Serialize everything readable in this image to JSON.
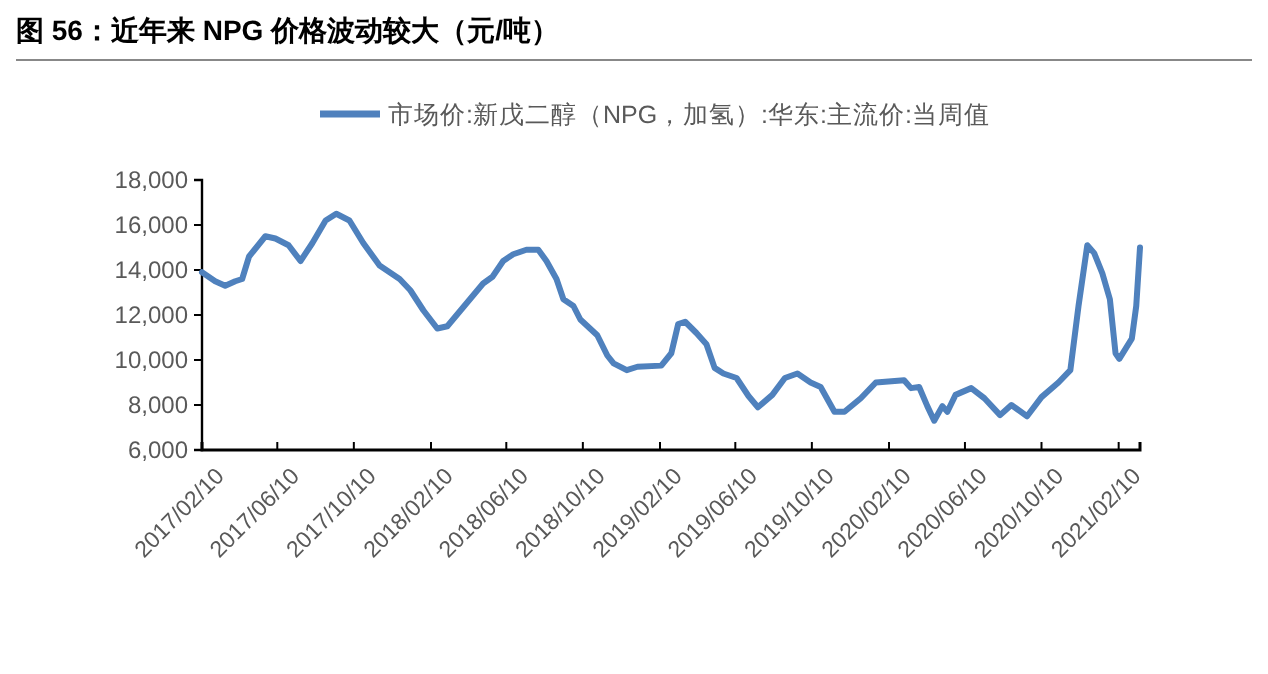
{
  "chart_data": {
    "type": "line",
    "title": "图 56：近年来 NPG 价格波动较大（元/吨）",
    "legend": "top",
    "line_style": "solid",
    "series": [
      {
        "name": "市场价:新戊二醇（NPG，加氢）:华东:主流价:当周值",
        "color": "#4f81bd",
        "x": [
          "2017-02-10",
          "2017-03-03",
          "2017-03-19",
          "2017-04-04",
          "2017-04-15",
          "2017-04-26",
          "2017-05-22",
          "2017-06-07",
          "2017-06-28",
          "2017-07-17",
          "2017-08-05",
          "2017-08-26",
          "2017-09-12",
          "2017-10-03",
          "2017-10-25",
          "2017-11-20",
          "2017-12-22",
          "2018-01-08",
          "2018-01-29",
          "2018-02-20",
          "2018-03-08",
          "2018-04-07",
          "2018-05-04",
          "2018-05-19",
          "2018-06-05",
          "2018-06-21",
          "2018-07-12",
          "2018-07-31",
          "2018-08-13",
          "2018-08-29",
          "2018-09-09",
          "2018-09-25",
          "2018-10-06",
          "2018-11-02",
          "2018-11-18",
          "2018-11-28",
          "2018-12-19",
          "2019-01-05",
          "2019-02-12",
          "2019-02-28",
          "2019-03-11",
          "2019-03-22",
          "2019-04-09",
          "2019-04-25",
          "2019-05-08",
          "2019-05-22",
          "2019-06-12",
          "2019-07-01",
          "2019-07-16",
          "2019-08-08",
          "2019-08-28",
          "2019-09-17",
          "2019-10-08",
          "2019-10-24",
          "2019-11-15",
          "2019-12-01",
          "2019-12-27",
          "2020-01-20",
          "2020-03-05",
          "2020-03-16",
          "2020-03-29",
          "2020-04-11",
          "2020-04-22",
          "2020-05-05",
          "2020-05-13",
          "2020-05-26",
          "2020-06-20",
          "2020-07-11",
          "2020-08-05",
          "2020-08-23",
          "2020-09-17",
          "2020-10-10",
          "2020-11-06",
          "2020-11-25",
          "2020-12-08",
          "2020-12-22",
          "2021-01-02",
          "2021-01-15",
          "2021-01-27",
          "2021-02-05",
          "2021-02-11",
          "2021-03-03",
          "2021-03-10",
          "2021-03-16"
        ],
        "values": [
          13900,
          13500,
          13300,
          13500,
          13600,
          14600,
          15500,
          15400,
          15100,
          14400,
          15200,
          16200,
          16500,
          16200,
          15200,
          14200,
          13600,
          13100,
          12200,
          11400,
          11500,
          12500,
          13400,
          13700,
          14400,
          14700,
          14900,
          14900,
          14400,
          13600,
          12700,
          12400,
          11800,
          11100,
          10200,
          9850,
          9550,
          9700,
          9750,
          10300,
          11600,
          11700,
          11200,
          10700,
          9650,
          9400,
          9200,
          8400,
          7900,
          8450,
          9200,
          9400,
          9000,
          8800,
          7700,
          7700,
          8300,
          9000,
          9100,
          8750,
          8800,
          7950,
          7300,
          7950,
          7700,
          8450,
          8750,
          8300,
          7550,
          8000,
          7500,
          8350,
          9000,
          9550,
          12400,
          15100,
          14750,
          13850,
          12700,
          10300,
          10050,
          10950,
          12400,
          15000
        ]
      }
    ],
    "xlim": [
      "2017-02-10",
      "2021-03-16"
    ],
    "xticks": [
      {
        "value": "2017-02-10",
        "label": "2017/02/10"
      },
      {
        "value": "2017-06-10",
        "label": "2017/06/10"
      },
      {
        "value": "2017-10-10",
        "label": "2017/10/10"
      },
      {
        "value": "2018-02-10",
        "label": "2018/02/10"
      },
      {
        "value": "2018-06-10",
        "label": "2018/06/10"
      },
      {
        "value": "2018-10-10",
        "label": "2018/10/10"
      },
      {
        "value": "2019-02-10",
        "label": "2019/02/10"
      },
      {
        "value": "2019-06-10",
        "label": "2019/06/10"
      },
      {
        "value": "2019-10-10",
        "label": "2019/10/10"
      },
      {
        "value": "2020-02-10",
        "label": "2020/02/10"
      },
      {
        "value": "2020-06-10",
        "label": "2020/06/10"
      },
      {
        "value": "2020-10-10",
        "label": "2020/10/10"
      },
      {
        "value": "2021-02-10",
        "label": "2021/02/10"
      }
    ],
    "ylim": [
      6000,
      18000
    ],
    "yticks": [
      {
        "value": 6000,
        "label": "6,000"
      },
      {
        "value": 8000,
        "label": "8,000"
      },
      {
        "value": 10000,
        "label": "10,000"
      },
      {
        "value": 12000,
        "label": "12,000"
      },
      {
        "value": 14000,
        "label": "14,000"
      },
      {
        "value": 16000,
        "label": "16,000"
      },
      {
        "value": 18000,
        "label": "18,000"
      }
    ],
    "grid": false
  }
}
